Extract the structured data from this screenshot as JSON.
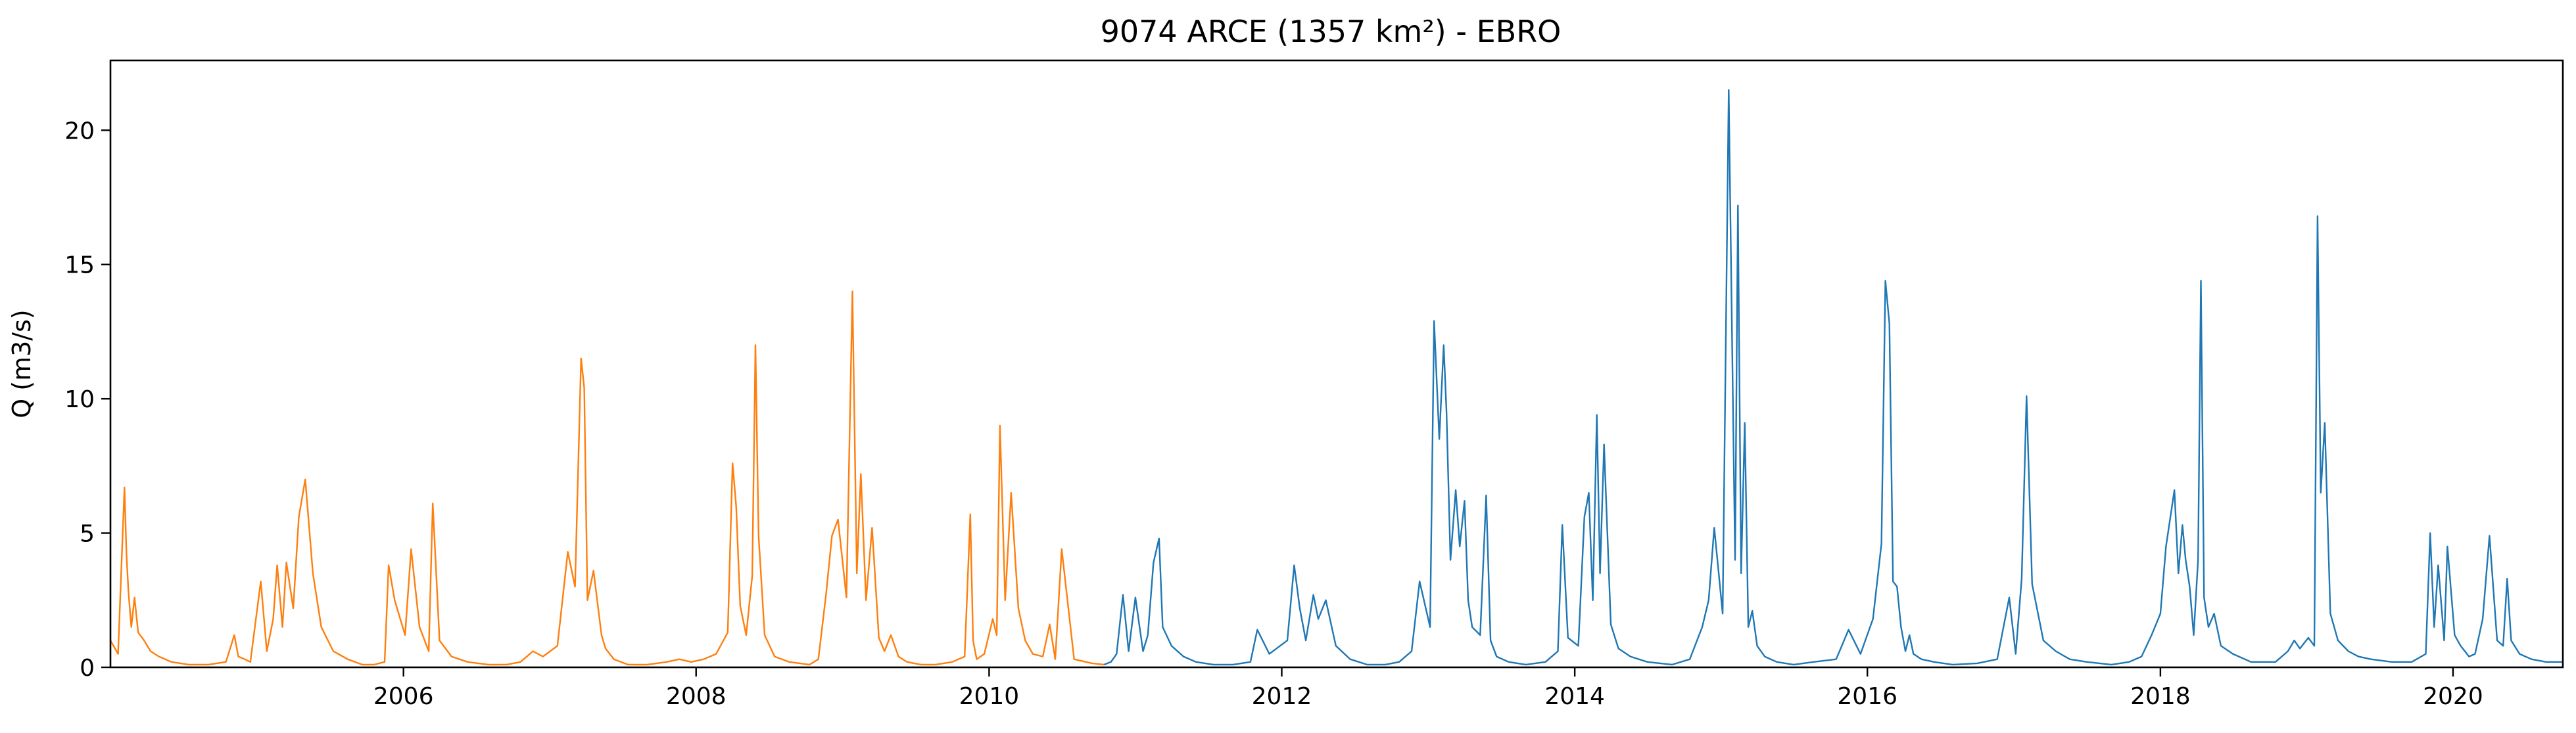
{
  "chart_data": {
    "type": "line",
    "title": "9074 ARCE (1357 km²) - EBRO",
    "xlabel": "",
    "ylabel": "Q (m3/s)",
    "xlim": [
      "2004-01-01",
      "2020-10-01"
    ],
    "ylim": [
      0,
      22.6
    ],
    "grid": false,
    "legend": "none",
    "x_ticks": [
      {
        "date": "2006-01-01",
        "label": "2006"
      },
      {
        "date": "2008-01-01",
        "label": "2008"
      },
      {
        "date": "2010-01-01",
        "label": "2010"
      },
      {
        "date": "2012-01-01",
        "label": "2012"
      },
      {
        "date": "2014-01-01",
        "label": "2014"
      },
      {
        "date": "2016-01-01",
        "label": "2016"
      },
      {
        "date": "2018-01-01",
        "label": "2018"
      },
      {
        "date": "2020-01-01",
        "label": "2020"
      }
    ],
    "y_ticks": [
      {
        "value": 0,
        "label": "0"
      },
      {
        "value": 5,
        "label": "5"
      },
      {
        "value": 10,
        "label": "10"
      },
      {
        "value": 15,
        "label": "15"
      },
      {
        "value": 20,
        "label": "20"
      }
    ],
    "series": [
      {
        "color": "#ff7f0e",
        "x": [
          "2004-01-01",
          "2004-01-20",
          "2004-02-05",
          "2004-02-10",
          "2004-02-15",
          "2004-02-22",
          "2004-03-01",
          "2004-03-10",
          "2004-03-25",
          "2004-04-10",
          "2004-05-01",
          "2004-06-01",
          "2004-07-15",
          "2004-09-01",
          "2004-10-15",
          "2004-11-05",
          "2004-11-15",
          "2004-12-01",
          "2004-12-15",
          "2005-01-10",
          "2005-01-25",
          "2005-02-10",
          "2005-02-20",
          "2005-03-05",
          "2005-03-15",
          "2005-04-01",
          "2005-04-15",
          "2005-05-01",
          "2005-05-20",
          "2005-06-10",
          "2005-07-10",
          "2005-08-15",
          "2005-09-20",
          "2005-10-20",
          "2005-11-15",
          "2005-11-25",
          "2005-12-10",
          "2006-01-05",
          "2006-01-20",
          "2006-02-10",
          "2006-03-05",
          "2006-03-15",
          "2006-04-01",
          "2006-05-01",
          "2006-06-10",
          "2006-08-01",
          "2006-09-15",
          "2006-10-20",
          "2006-11-20",
          "2006-12-15",
          "2007-01-20",
          "2007-02-15",
          "2007-03-05",
          "2007-03-20",
          "2007-03-28",
          "2007-04-05",
          "2007-04-20",
          "2007-05-10",
          "2007-05-20",
          "2007-06-10",
          "2007-07-15",
          "2007-09-01",
          "2007-10-20",
          "2007-11-20",
          "2007-12-20",
          "2008-01-20",
          "2008-02-20",
          "2008-03-20",
          "2008-04-01",
          "2008-04-10",
          "2008-04-20",
          "2008-05-05",
          "2008-05-20",
          "2008-05-28",
          "2008-06-05",
          "2008-06-20",
          "2008-07-15",
          "2008-08-20",
          "2008-10-10",
          "2008-11-01",
          "2008-11-20",
          "2008-12-05",
          "2008-12-20",
          "2009-01-10",
          "2009-01-25",
          "2009-02-05",
          "2009-02-15",
          "2009-02-28",
          "2009-03-15",
          "2009-04-01",
          "2009-04-15",
          "2009-05-01",
          "2009-05-20",
          "2009-06-10",
          "2009-07-15",
          "2009-08-20",
          "2009-10-01",
          "2009-11-01",
          "2009-11-15",
          "2009-11-22",
          "2009-12-01",
          "2009-12-20",
          "2010-01-10",
          "2010-01-20",
          "2010-01-28",
          "2010-02-10",
          "2010-02-25",
          "2010-03-15",
          "2010-04-01",
          "2010-04-20",
          "2010-05-15",
          "2010-06-01",
          "2010-06-15",
          "2010-07-01",
          "2010-08-01",
          "2010-09-15",
          "2010-10-15"
        ],
        "values": [
          1.0,
          0.5,
          6.7,
          4.2,
          2.8,
          1.5,
          2.6,
          1.3,
          1.0,
          0.6,
          0.4,
          0.2,
          0.1,
          0.1,
          0.2,
          1.2,
          0.4,
          0.3,
          0.2,
          3.2,
          0.6,
          1.8,
          3.8,
          1.5,
          3.9,
          2.2,
          5.6,
          7.0,
          3.5,
          1.5,
          0.6,
          0.3,
          0.1,
          0.1,
          0.2,
          3.8,
          2.5,
          1.2,
          4.4,
          1.5,
          0.6,
          6.1,
          1.0,
          0.4,
          0.2,
          0.1,
          0.1,
          0.2,
          0.6,
          0.4,
          0.8,
          4.3,
          3.0,
          11.5,
          10.4,
          2.5,
          3.6,
          1.2,
          0.7,
          0.3,
          0.1,
          0.1,
          0.2,
          0.3,
          0.2,
          0.3,
          0.5,
          1.3,
          7.6,
          6.0,
          2.3,
          1.2,
          3.4,
          12.0,
          4.9,
          1.2,
          0.4,
          0.2,
          0.1,
          0.3,
          2.7,
          4.9,
          5.5,
          2.6,
          14.0,
          3.5,
          7.2,
          2.5,
          5.2,
          1.1,
          0.6,
          1.2,
          0.4,
          0.2,
          0.1,
          0.1,
          0.2,
          0.4,
          5.7,
          1.0,
          0.3,
          0.5,
          1.8,
          1.2,
          9.0,
          2.5,
          6.5,
          2.2,
          1.0,
          0.5,
          0.4,
          1.6,
          0.3,
          4.4,
          0.3,
          0.15,
          0.1
        ]
      },
      {
        "color": "#1f77b4",
        "x": [
          "2010-10-15",
          "2010-11-01",
          "2010-11-15",
          "2010-12-01",
          "2010-12-15",
          "2011-01-01",
          "2011-01-20",
          "2011-02-01",
          "2011-02-15",
          "2011-03-01",
          "2011-03-10",
          "2011-04-01",
          "2011-05-01",
          "2011-06-01",
          "2011-07-15",
          "2011-09-01",
          "2011-10-15",
          "2011-11-01",
          "2011-12-01",
          "2012-01-15",
          "2012-02-01",
          "2012-02-15",
          "2012-03-01",
          "2012-03-20",
          "2012-04-01",
          "2012-04-20",
          "2012-05-15",
          "2012-06-20",
          "2012-08-01",
          "2012-09-15",
          "2012-10-20",
          "2012-11-20",
          "2012-12-10",
          "2013-01-05",
          "2013-01-15",
          "2013-01-28",
          "2013-02-08",
          "2013-02-15",
          "2013-02-25",
          "2013-03-10",
          "2013-03-20",
          "2013-04-01",
          "2013-04-10",
          "2013-04-20",
          "2013-05-10",
          "2013-05-25",
          "2013-06-05",
          "2013-06-20",
          "2013-07-20",
          "2013-09-01",
          "2013-10-20",
          "2013-11-20",
          "2013-12-01",
          "2013-12-15",
          "2014-01-10",
          "2014-01-25",
          "2014-02-05",
          "2014-02-15",
          "2014-02-25",
          "2014-03-05",
          "2014-03-15",
          "2014-04-01",
          "2014-04-20",
          "2014-05-20",
          "2014-07-01",
          "2014-09-01",
          "2014-10-15",
          "2014-11-15",
          "2014-12-01",
          "2014-12-15",
          "2015-01-05",
          "2015-01-20",
          "2015-01-28",
          "2015-02-05",
          "2015-02-12",
          "2015-02-20",
          "2015-03-01",
          "2015-03-10",
          "2015-03-20",
          "2015-04-01",
          "2015-04-20",
          "2015-05-20",
          "2015-07-01",
          "2015-08-20",
          "2015-10-15",
          "2015-11-15",
          "2015-12-15",
          "2016-01-15",
          "2016-02-05",
          "2016-02-15",
          "2016-02-25",
          "2016-03-05",
          "2016-03-15",
          "2016-03-25",
          "2016-04-05",
          "2016-04-15",
          "2016-04-25",
          "2016-05-15",
          "2016-06-15",
          "2016-08-01",
          "2016-10-01",
          "2016-11-20",
          "2016-12-20",
          "2017-01-05",
          "2017-01-20",
          "2017-02-01",
          "2017-02-15",
          "2017-03-15",
          "2017-04-15",
          "2017-05-20",
          "2017-07-01",
          "2017-09-01",
          "2017-10-15",
          "2017-11-15",
          "2017-12-10",
          "2018-01-01",
          "2018-01-15",
          "2018-01-25",
          "2018-02-05",
          "2018-02-15",
          "2018-02-25",
          "2018-03-05",
          "2018-03-15",
          "2018-03-25",
          "2018-04-05",
          "2018-04-12",
          "2018-04-20",
          "2018-05-01",
          "2018-05-15",
          "2018-06-01",
          "2018-07-01",
          "2018-08-15",
          "2018-10-15",
          "2018-11-15",
          "2018-12-01",
          "2018-12-15",
          "2019-01-05",
          "2019-01-20",
          "2019-01-28",
          "2019-02-05",
          "2019-02-15",
          "2019-03-01",
          "2019-03-20",
          "2019-04-15",
          "2019-05-10",
          "2019-06-10",
          "2019-08-01",
          "2019-09-20",
          "2019-10-25",
          "2019-11-05",
          "2019-11-15",
          "2019-11-25",
          "2019-12-10",
          "2019-12-18",
          "2020-01-05",
          "2020-01-20",
          "2020-02-10",
          "2020-02-25",
          "2020-03-15",
          "2020-04-01",
          "2020-04-20",
          "2020-05-05",
          "2020-05-15",
          "2020-05-25",
          "2020-06-15",
          "2020-07-15",
          "2020-08-20",
          "2020-10-01"
        ],
        "values": [
          0.1,
          0.2,
          0.5,
          2.7,
          0.6,
          2.6,
          0.6,
          1.2,
          3.9,
          4.8,
          1.5,
          0.8,
          0.4,
          0.2,
          0.1,
          0.1,
          0.2,
          1.4,
          0.5,
          1.0,
          3.8,
          2.2,
          1.0,
          2.7,
          1.8,
          2.5,
          0.8,
          0.3,
          0.1,
          0.1,
          0.2,
          0.6,
          3.2,
          1.5,
          12.9,
          8.5,
          12.0,
          9.5,
          4.0,
          6.6,
          4.5,
          6.2,
          2.5,
          1.5,
          1.2,
          6.4,
          1.0,
          0.4,
          0.2,
          0.1,
          0.2,
          0.6,
          5.3,
          1.1,
          0.8,
          5.6,
          6.5,
          2.5,
          9.4,
          3.5,
          8.3,
          1.6,
          0.7,
          0.4,
          0.2,
          0.1,
          0.3,
          1.5,
          2.5,
          5.2,
          2.0,
          21.5,
          12.8,
          4.0,
          17.2,
          3.5,
          9.1,
          1.5,
          2.1,
          0.8,
          0.4,
          0.2,
          0.1,
          0.2,
          0.3,
          1.4,
          0.5,
          1.8,
          4.6,
          14.4,
          12.8,
          3.2,
          3.0,
          1.5,
          0.6,
          1.2,
          0.5,
          0.3,
          0.2,
          0.1,
          0.15,
          0.3,
          2.6,
          0.5,
          3.3,
          10.1,
          3.1,
          1.0,
          0.6,
          0.3,
          0.2,
          0.1,
          0.2,
          0.4,
          1.2,
          2.0,
          4.5,
          5.5,
          6.6,
          3.5,
          5.3,
          4.0,
          3.0,
          1.2,
          4.0,
          14.4,
          2.6,
          1.5,
          2.0,
          0.8,
          0.5,
          0.2,
          0.2,
          0.6,
          1.0,
          0.7,
          1.1,
          0.8,
          16.8,
          6.5,
          9.1,
          2.0,
          1.0,
          0.6,
          0.4,
          0.3,
          0.2,
          0.2,
          0.5,
          5.0,
          1.5,
          3.8,
          1.0,
          4.5,
          1.2,
          0.8,
          0.4,
          0.5,
          1.8,
          4.9,
          1.0,
          0.8,
          3.3,
          1.0,
          0.5,
          0.3,
          0.2,
          0.2
        ]
      }
    ]
  }
}
